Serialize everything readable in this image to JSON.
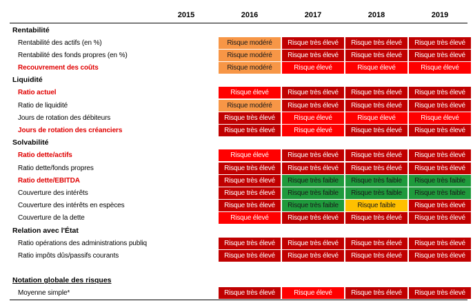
{
  "header": {
    "columns": [
      "2015",
      "2016",
      "2017",
      "2018",
      "2019"
    ]
  },
  "colors": {
    "Risque très élevé": {
      "fill": "#c00000",
      "text": "#ffffff"
    },
    "Risque élevé": {
      "fill": "#ff0000",
      "text": "#ffffff"
    },
    "Risque modéré": {
      "fill": "#f79646",
      "text": "#1a1a1a"
    },
    "Risque faible": {
      "fill": "#ffc000",
      "text": "#1a1a1a"
    },
    "Risque très faible": {
      "fill": "#1f9a3c",
      "text": "#1a1a1a"
    }
  },
  "sections": [
    {
      "title": "Rentabilité",
      "rows": [
        {
          "label": "Rentabilité des actifs (en %)",
          "cells": [
            null,
            "Risque modéré",
            "Risque très élevé",
            "Risque très élevé",
            "Risque très élevé"
          ]
        },
        {
          "label": "Rentabilité des fonds propres (en %)",
          "cells": [
            null,
            "Risque modéré",
            "Risque très élevé",
            "Risque très élevé",
            "Risque très élevé"
          ]
        },
        {
          "label": "Recouvrement des coûts",
          "emphasis": true,
          "cells": [
            null,
            "Risque modéré",
            "Risque élevé",
            "Risque élevé",
            "Risque élevé"
          ]
        }
      ]
    },
    {
      "title": "Liquidité",
      "rows": [
        {
          "label": "Ratio actuel",
          "emphasis": true,
          "cells": [
            null,
            "Risque élevé",
            "Risque très élevé",
            "Risque très élevé",
            "Risque très élevé"
          ]
        },
        {
          "label": "Ratio de liquidité",
          "cells": [
            null,
            "Risque modéré",
            "Risque très élevé",
            "Risque très élevé",
            "Risque très élevé"
          ]
        },
        {
          "label": "Jours de rotation des débiteurs",
          "cells": [
            null,
            "Risque très élevé",
            "Risque élevé",
            "Risque élevé",
            "Risque élevé"
          ]
        },
        {
          "label": "Jours de rotation des créanciers",
          "emphasis": true,
          "cells": [
            null,
            "Risque très élevé",
            "Risque élevé",
            "Risque très élevé",
            "Risque très élevé"
          ]
        }
      ]
    },
    {
      "title": "Solvabilité",
      "rows": [
        {
          "label": "Ratio dette/actifs",
          "emphasis": true,
          "cells": [
            null,
            "Risque élevé",
            "Risque très élevé",
            "Risque très élevé",
            "Risque très élevé"
          ]
        },
        {
          "label": "Ratio dette/fonds propres",
          "cells": [
            null,
            "Risque très élevé",
            "Risque très élevé",
            "Risque très élevé",
            "Risque très élevé"
          ]
        },
        {
          "label": "Ratio dette/EBITDA",
          "emphasis": true,
          "cells": [
            null,
            "Risque très élevé",
            "Risque très faible",
            "Risque très faible",
            "Risque très faible"
          ]
        },
        {
          "label": "Couverture des intérêts",
          "cells": [
            null,
            "Risque très élevé",
            "Risque très faible",
            "Risque très faible",
            "Risque très faible"
          ]
        },
        {
          "label": "Couverture des intérêts en espèces",
          "cells": [
            null,
            "Risque très élevé",
            "Risque très faible",
            "Risque faible",
            "Risque très élevé"
          ]
        },
        {
          "label": "Couverture de la dette",
          "cells": [
            null,
            "Risque élevé",
            "Risque très élevé",
            "Risque très élevé",
            "Risque très élevé"
          ]
        }
      ]
    },
    {
      "title": "Relation avec l'État",
      "rows": [
        {
          "label": "Ratio opérations des administrations publiq",
          "cells": [
            null,
            "Risque très élevé",
            "Risque très élevé",
            "Risque très élevé",
            "Risque très élevé"
          ]
        },
        {
          "label": "Ratio impôts dûs/passifs courants",
          "cells": [
            null,
            "Risque très élevé",
            "Risque très élevé",
            "Risque très élevé",
            "Risque très élevé"
          ]
        }
      ]
    },
    {
      "title": "Notation globale des risques",
      "underline": true,
      "rows": [
        {
          "label": "Moyenne simple*",
          "cells": [
            null,
            "Risque très élevé",
            "Risque élevé",
            "Risque très élevé",
            "Risque très élevé"
          ]
        }
      ]
    }
  ]
}
